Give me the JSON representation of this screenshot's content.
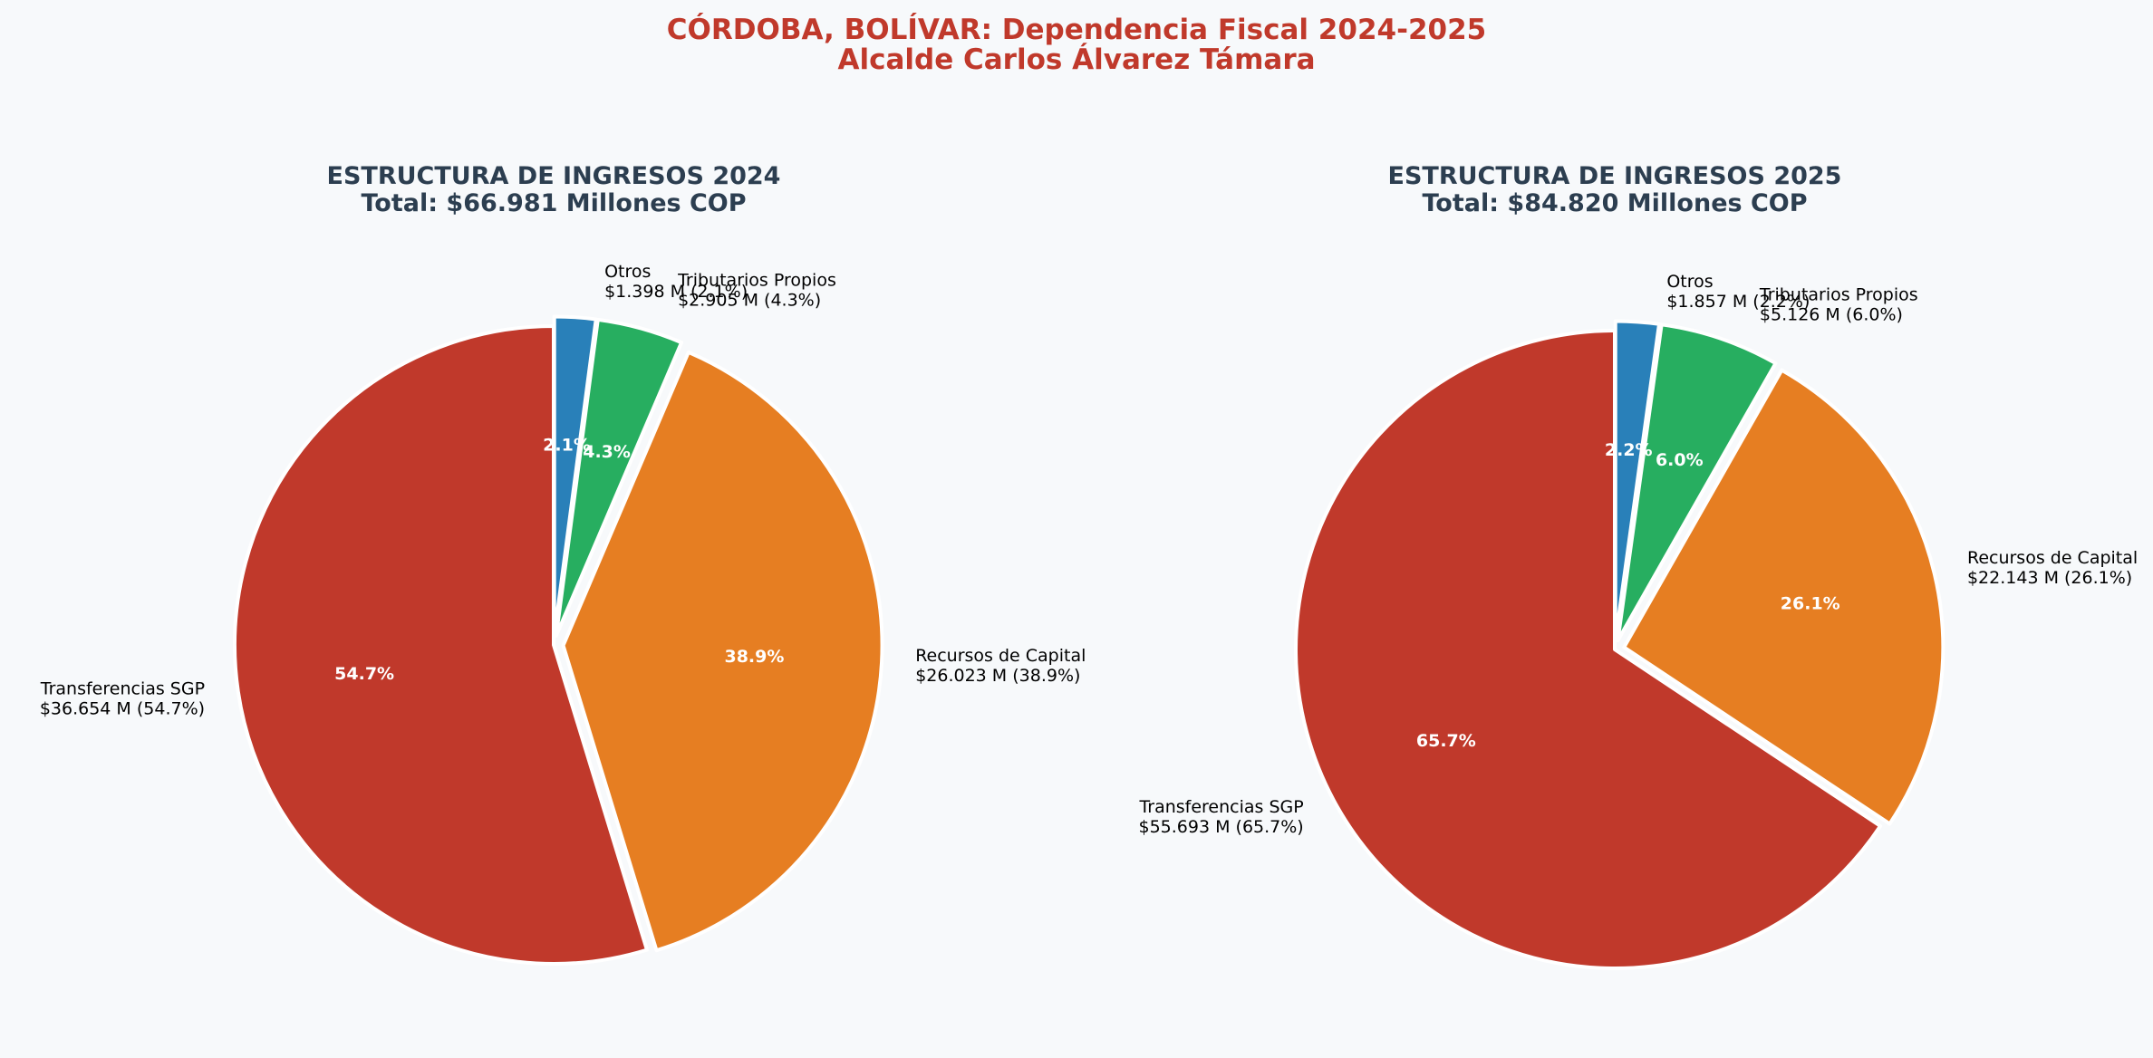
{
  "figure": {
    "title_line1": "CÓRDOBA, BOLÍVAR: Dependencia Fiscal 2024-2025",
    "title_line2": "Alcalde Carlos Álvarez Támara"
  },
  "colors": {
    "background": "#f7f9fb",
    "title": "#c0392b",
    "subtitle": "#2c3e50",
    "slice_edge": "#ffffff"
  },
  "chart_data": [
    {
      "type": "pie",
      "title_line1": "ESTRUCTURA DE INGRESOS 2024",
      "title_line2": "Total: $66.981 Millones COP",
      "start_angle_deg": 90,
      "direction": "clockwise",
      "slices": [
        {
          "name": "Otros",
          "value": 1398,
          "value_label": "$1.398 M (2.1%)",
          "pct_label": "2.1%",
          "color": "#2980b9",
          "exploded": true
        },
        {
          "name": "Tributarios Propios",
          "value": 2905,
          "value_label": "$2.905 M (4.3%)",
          "pct_label": "4.3%",
          "color": "#27ae60",
          "exploded": true
        },
        {
          "name": "Recursos de Capital",
          "value": 26023,
          "value_label": "$26.023 M (38.9%)",
          "pct_label": "38.9%",
          "color": "#e67e22",
          "exploded": true
        },
        {
          "name": "Transferencias SGP",
          "value": 36654,
          "value_label": "$36.654 M (54.7%)",
          "pct_label": "54.7%",
          "color": "#c0392b",
          "exploded": false
        }
      ]
    },
    {
      "type": "pie",
      "title_line1": "ESTRUCTURA DE INGRESOS 2025",
      "title_line2": "Total: $84.820 Millones COP",
      "start_angle_deg": 90,
      "direction": "clockwise",
      "slices": [
        {
          "name": "Otros",
          "value": 1857,
          "value_label": "$1.857 M (2.2%)",
          "pct_label": "2.2%",
          "color": "#2980b9",
          "exploded": true
        },
        {
          "name": "Tributarios Propios",
          "value": 5126,
          "value_label": "$5.126 M (6.0%)",
          "pct_label": "6.0%",
          "color": "#27ae60",
          "exploded": true
        },
        {
          "name": "Recursos de Capital",
          "value": 22143,
          "value_label": "$22.143 M (26.1%)",
          "pct_label": "26.1%",
          "color": "#e67e22",
          "exploded": true
        },
        {
          "name": "Transferencias SGP",
          "value": 55693,
          "value_label": "$55.693 M (65.7%)",
          "pct_label": "65.7%",
          "color": "#c0392b",
          "exploded": false
        }
      ]
    }
  ]
}
